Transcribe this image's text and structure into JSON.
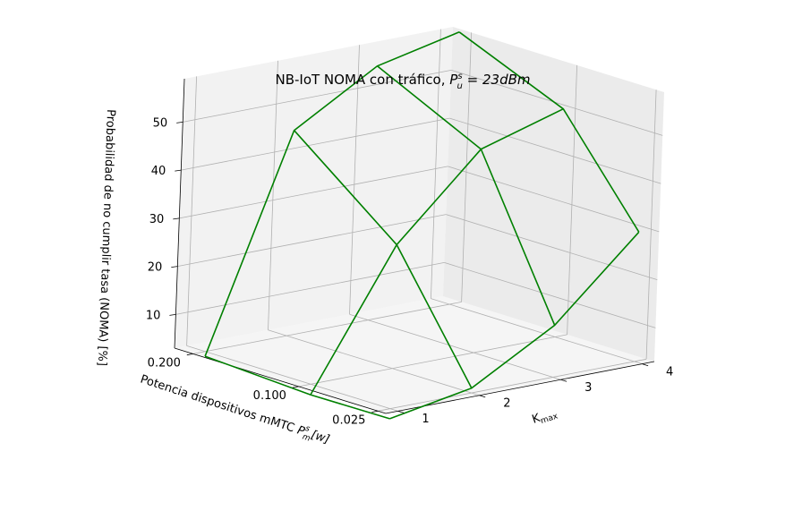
{
  "chart_data": {
    "type": "wireframe-3d",
    "title_main": "NB-IoT NOMA con tráfico, ",
    "title_math": "P",
    "title_math_sup": "s",
    "title_math_sub": "u",
    "title_math_rest": " = 23dBm",
    "x_axis": {
      "label_main": "K",
      "label_sub": "max",
      "ticks": [
        1,
        2,
        3,
        4
      ],
      "range": [
        0.85,
        4.15
      ]
    },
    "y_axis": {
      "label_main": "Potencia dispositivos mMTC ",
      "label_math": "P",
      "label_math_sup": "s",
      "label_math_sub": "m",
      "label_math_rest": "[w]",
      "ticks": [
        "0.025",
        "0.100",
        "0.200"
      ],
      "tick_values": [
        0.025,
        0.1,
        0.2
      ],
      "range": [
        0.0175,
        0.2175
      ]
    },
    "z_axis": {
      "label": "Probabilidad de no cumplir tasa (NOMA) [%]",
      "ticks": [
        10,
        20,
        30,
        40,
        50
      ],
      "range": [
        3,
        59
      ]
    },
    "surface": {
      "k_values": [
        1,
        2,
        3,
        4
      ],
      "p_values": [
        0.025,
        0.1,
        0.2
      ],
      "z": [
        [
          0.9,
          0.8,
          2.0
        ],
        [
          4.0,
          28.7,
          45.7
        ],
        [
          13.8,
          45.3,
          55.8
        ],
        [
          29.9,
          50.4,
          59.6
        ]
      ],
      "color": "#008000"
    },
    "grid": true,
    "pane_color": "#f2f2f2"
  }
}
